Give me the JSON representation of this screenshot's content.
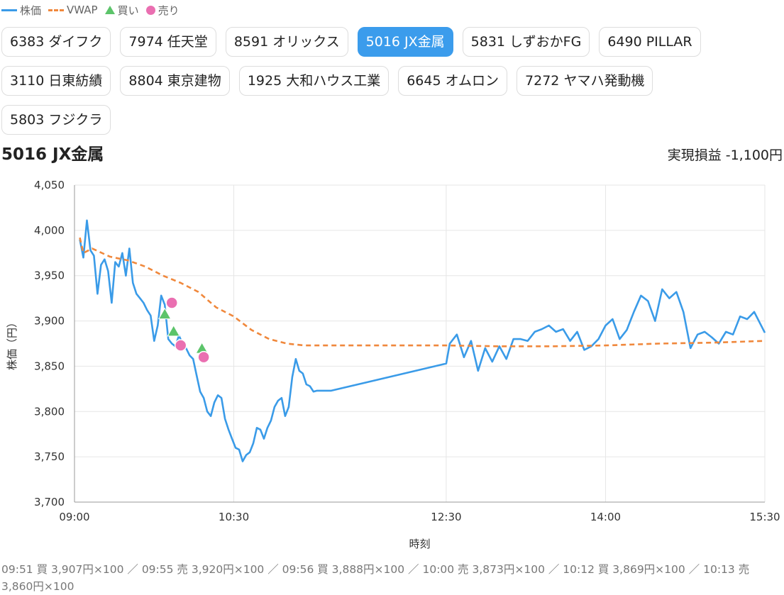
{
  "legend": {
    "price": "株価",
    "vwap": "VWAP",
    "buy": "買い",
    "sell": "売り"
  },
  "tabs": [
    {
      "label": "6383 ダイフク",
      "active": false
    },
    {
      "label": "7974 任天堂",
      "active": false
    },
    {
      "label": "8591 オリックス",
      "active": false
    },
    {
      "label": "5016 JX金属",
      "active": true
    },
    {
      "label": "5831 しずおかFG",
      "active": false
    },
    {
      "label": "6490 PILLAR",
      "active": false
    },
    {
      "label": "3110 日東紡績",
      "active": false
    },
    {
      "label": "8804 東京建物",
      "active": false
    },
    {
      "label": "1925 大和ハウス工業",
      "active": false
    },
    {
      "label": "6645 オムロン",
      "active": false
    },
    {
      "label": "7272 ヤマハ発動機",
      "active": false
    },
    {
      "label": "5803 フジクラ",
      "active": false
    }
  ],
  "chart_title": "5016 JX金属",
  "realized_pnl": "実現損益 -1,100円",
  "trades_text": "09:51 買 3,907円×100 ／ 09:55 売 3,920円×100 ／ 09:56 買 3,888円×100 ／ 10:00 売 3,873円×100 ／ 10:12 買 3,869円×100 ／ 10:13 売 3,860円×100",
  "colors": {
    "price": "#3a9be8",
    "vwap": "#f0883c",
    "buy": "#5cc46a",
    "sell": "#ea6fb1",
    "active_tab": "#3b9cec"
  },
  "chart_data": {
    "type": "line",
    "xlabel": "時刻",
    "ylabel": "株価（円）",
    "ylim": [
      3700,
      4050
    ],
    "yticks": [
      3700,
      3750,
      3800,
      3850,
      3900,
      3950,
      4000,
      4050
    ],
    "ytick_labels": [
      "3,700",
      "3,750",
      "3,800",
      "3,850",
      "3,900",
      "3,950",
      "4,000",
      "4,050"
    ],
    "xlim": [
      "09:00",
      "15:30"
    ],
    "xticks": [
      "09:00",
      "10:30",
      "12:30",
      "14:00",
      "15:30"
    ],
    "grid": true,
    "series": [
      {
        "name": "株価",
        "style": "solid",
        "x": [
          "09:03",
          "09:05",
          "09:07",
          "09:09",
          "09:11",
          "09:13",
          "09:15",
          "09:17",
          "09:19",
          "09:21",
          "09:23",
          "09:25",
          "09:27",
          "09:29",
          "09:31",
          "09:33",
          "09:35",
          "09:37",
          "09:39",
          "09:41",
          "09:43",
          "09:45",
          "09:47",
          "09:49",
          "09:51",
          "09:53",
          "09:55",
          "09:57",
          "09:59",
          "10:01",
          "10:03",
          "10:05",
          "10:07",
          "10:09",
          "10:11",
          "10:13",
          "10:15",
          "10:17",
          "10:19",
          "10:21",
          "10:23",
          "10:25",
          "10:27",
          "10:29",
          "10:31",
          "10:33",
          "10:35",
          "10:37",
          "10:39",
          "10:41",
          "10:43",
          "10:45",
          "10:47",
          "10:49",
          "10:51",
          "10:53",
          "10:55",
          "10:57",
          "10:59",
          "11:01",
          "11:03",
          "11:05",
          "11:07",
          "11:09",
          "11:11",
          "11:13",
          "11:15",
          "11:17",
          "11:19",
          "11:21",
          "11:25",
          "12:30",
          "12:32",
          "12:36",
          "12:40",
          "12:44",
          "12:48",
          "12:52",
          "12:56",
          "13:00",
          "13:04",
          "13:08",
          "13:12",
          "13:16",
          "13:20",
          "13:24",
          "13:28",
          "13:32",
          "13:36",
          "13:40",
          "13:44",
          "13:48",
          "13:52",
          "13:56",
          "14:00",
          "14:04",
          "14:08",
          "14:12",
          "14:16",
          "14:20",
          "14:24",
          "14:28",
          "14:32",
          "14:36",
          "14:40",
          "14:44",
          "14:48",
          "14:52",
          "14:56",
          "15:00",
          "15:04",
          "15:08",
          "15:12",
          "15:16",
          "15:20",
          "15:24",
          "15:30"
        ],
        "y": [
          3990,
          3970,
          4011,
          3978,
          3972,
          3930,
          3962,
          3968,
          3955,
          3920,
          3965,
          3960,
          3975,
          3950,
          3980,
          3942,
          3930,
          3925,
          3920,
          3912,
          3906,
          3878,
          3895,
          3928,
          3918,
          3880,
          3875,
          3872,
          3884,
          3875,
          3870,
          3862,
          3858,
          3840,
          3822,
          3815,
          3800,
          3795,
          3810,
          3818,
          3815,
          3792,
          3780,
          3770,
          3760,
          3758,
          3745,
          3752,
          3755,
          3765,
          3782,
          3780,
          3770,
          3782,
          3790,
          3805,
          3812,
          3815,
          3795,
          3805,
          3838,
          3858,
          3845,
          3842,
          3830,
          3828,
          3822,
          3823,
          3823,
          3823,
          3823,
          3853,
          3875,
          3885,
          3860,
          3878,
          3845,
          3870,
          3855,
          3872,
          3858,
          3880,
          3880,
          3878,
          3888,
          3891,
          3895,
          3888,
          3891,
          3878,
          3888,
          3868,
          3872,
          3880,
          3895,
          3902,
          3880,
          3890,
          3910,
          3928,
          3922,
          3900,
          3935,
          3925,
          3932,
          3910,
          3870,
          3885,
          3888,
          3882,
          3875,
          3888,
          3885,
          3905,
          3902,
          3910,
          3887
        ],
        "last_label": "15:30"
      },
      {
        "name": "VWAP",
        "style": "dashed",
        "x": [
          "09:03",
          "09:05",
          "09:10",
          "09:20",
          "09:30",
          "09:40",
          "09:45",
          "09:50",
          "10:00",
          "10:10",
          "10:20",
          "10:30",
          "10:40",
          "10:50",
          "11:00",
          "11:10",
          "11:25",
          "12:30",
          "13:00",
          "13:30",
          "14:00",
          "14:30",
          "15:00",
          "15:30"
        ],
        "y": [
          3992,
          3975,
          3980,
          3971,
          3967,
          3960,
          3955,
          3950,
          3942,
          3932,
          3915,
          3905,
          3890,
          3880,
          3875,
          3873,
          3873,
          3873,
          3872,
          3872,
          3873,
          3875,
          3876,
          3878
        ]
      }
    ],
    "markers": [
      {
        "type": "buy",
        "time": "09:51",
        "price": 3907
      },
      {
        "type": "sell",
        "time": "09:55",
        "price": 3920
      },
      {
        "type": "buy",
        "time": "09:56",
        "price": 3888
      },
      {
        "type": "sell",
        "time": "10:00",
        "price": 3873
      },
      {
        "type": "buy",
        "time": "10:12",
        "price": 3869
      },
      {
        "type": "sell",
        "time": "10:13",
        "price": 3860
      }
    ]
  }
}
